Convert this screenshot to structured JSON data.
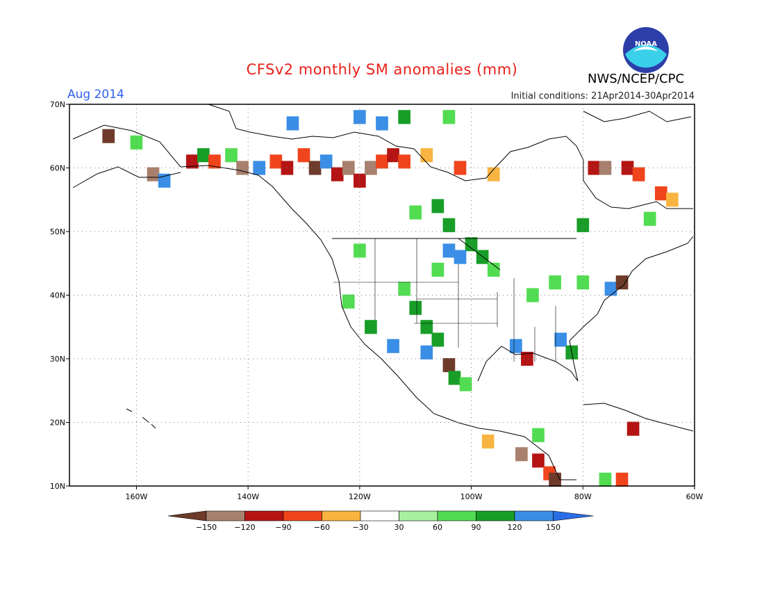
{
  "header": {
    "title": "CFSv2 monthly SM anomalies (mm)",
    "valid_month": "Aug 2014",
    "initial_conditions": "Initial conditions: 21Apr2014-30Apr2014",
    "organization": "NWS/NCEP/CPC",
    "logo_text": "NOAA"
  },
  "colors": {
    "title": "#e8201a",
    "valid_month": "#2f5ef0",
    "frame": "#000000",
    "grid": "#7a7a7a"
  },
  "map": {
    "lon_range": [
      -172,
      -60
    ],
    "lat_range": [
      10,
      70
    ],
    "lat_ticks": [
      {
        "value": 70,
        "label": "70N"
      },
      {
        "value": 60,
        "label": "60N"
      },
      {
        "value": 50,
        "label": "50N"
      },
      {
        "value": 40,
        "label": "40N"
      },
      {
        "value": 30,
        "label": "30N"
      },
      {
        "value": 20,
        "label": "20N"
      },
      {
        "value": 10,
        "label": "10N"
      }
    ],
    "lon_ticks": [
      {
        "value": -160,
        "label": "160W"
      },
      {
        "value": -140,
        "label": "140W"
      },
      {
        "value": -120,
        "label": "120W"
      },
      {
        "value": -100,
        "label": "100W"
      },
      {
        "value": -80,
        "label": "80W"
      },
      {
        "value": -60,
        "label": "60W"
      }
    ],
    "grid_lines": "dotted"
  },
  "colorbar": {
    "labels": [
      "−150",
      "−120",
      "−90",
      "−60",
      "−30",
      "30",
      "60",
      "90",
      "120",
      "150"
    ],
    "colors": [
      "#6e3b2a",
      "#a8806e",
      "#b41414",
      "#f0451c",
      "#f8b440",
      "#ffffff",
      "#a8f0a0",
      "#52dc52",
      "#189e28",
      "#3a8ee6",
      "#2a6ee6"
    ]
  },
  "anomaly_cells": [
    {
      "lon": -165,
      "lat": 65,
      "v": -150
    },
    {
      "lon": -160,
      "lat": 64,
      "v": 60
    },
    {
      "lon": -157,
      "lat": 59,
      "v": -120
    },
    {
      "lon": -155,
      "lat": 58,
      "v": 150
    },
    {
      "lon": -150,
      "lat": 61,
      "v": -90
    },
    {
      "lon": -148,
      "lat": 62,
      "v": 90
    },
    {
      "lon": -146,
      "lat": 61,
      "v": -60
    },
    {
      "lon": -143,
      "lat": 62,
      "v": 60
    },
    {
      "lon": -141,
      "lat": 60,
      "v": -120
    },
    {
      "lon": -138,
      "lat": 60,
      "v": 150
    },
    {
      "lon": -135,
      "lat": 61,
      "v": -60
    },
    {
      "lon": -133,
      "lat": 60,
      "v": -90
    },
    {
      "lon": -130,
      "lat": 62,
      "v": -60
    },
    {
      "lon": -128,
      "lat": 60,
      "v": -150
    },
    {
      "lon": -126,
      "lat": 61,
      "v": 150
    },
    {
      "lon": -124,
      "lat": 59,
      "v": -90
    },
    {
      "lon": -122,
      "lat": 60,
      "v": -120
    },
    {
      "lon": -120,
      "lat": 58,
      "v": -90
    },
    {
      "lon": -118,
      "lat": 60,
      "v": -120
    },
    {
      "lon": -116,
      "lat": 61,
      "v": -60
    },
    {
      "lon": -114,
      "lat": 62,
      "v": -90
    },
    {
      "lon": -112,
      "lat": 61,
      "v": -60
    },
    {
      "lon": -108,
      "lat": 62,
      "v": -30
    },
    {
      "lon": -102,
      "lat": 60,
      "v": -60
    },
    {
      "lon": -96,
      "lat": 59,
      "v": -30
    },
    {
      "lon": -132,
      "lat": 67,
      "v": 150
    },
    {
      "lon": -120,
      "lat": 68,
      "v": 150
    },
    {
      "lon": -116,
      "lat": 67,
      "v": 150
    },
    {
      "lon": -112,
      "lat": 68,
      "v": 90
    },
    {
      "lon": -104,
      "lat": 68,
      "v": 60
    },
    {
      "lon": -106,
      "lat": 54,
      "v": 90
    },
    {
      "lon": -110,
      "lat": 53,
      "v": 60
    },
    {
      "lon": -104,
      "lat": 51,
      "v": 90
    },
    {
      "lon": -100,
      "lat": 48,
      "v": 90
    },
    {
      "lon": -104,
      "lat": 47,
      "v": 150
    },
    {
      "lon": -102,
      "lat": 46,
      "v": 150
    },
    {
      "lon": -98,
      "lat": 46,
      "v": 90
    },
    {
      "lon": -96,
      "lat": 44,
      "v": 60
    },
    {
      "lon": -106,
      "lat": 44,
      "v": 60
    },
    {
      "lon": -112,
      "lat": 41,
      "v": 60
    },
    {
      "lon": -110,
      "lat": 38,
      "v": 90
    },
    {
      "lon": -108,
      "lat": 35,
      "v": 90
    },
    {
      "lon": -106,
      "lat": 33,
      "v": 90
    },
    {
      "lon": -108,
      "lat": 31,
      "v": 150
    },
    {
      "lon": -104,
      "lat": 29,
      "v": -150
    },
    {
      "lon": -103,
      "lat": 27,
      "v": 90
    },
    {
      "lon": -101,
      "lat": 26,
      "v": 60
    },
    {
      "lon": -92,
      "lat": 32,
      "v": 150
    },
    {
      "lon": -90,
      "lat": 30,
      "v": -90
    },
    {
      "lon": -84,
      "lat": 33,
      "v": 150
    },
    {
      "lon": -82,
      "lat": 31,
      "v": 90
    },
    {
      "lon": -89,
      "lat": 40,
      "v": 60
    },
    {
      "lon": -85,
      "lat": 42,
      "v": 60
    },
    {
      "lon": -80,
      "lat": 42,
      "v": 60
    },
    {
      "lon": -75,
      "lat": 41,
      "v": 150
    },
    {
      "lon": -73,
      "lat": 42,
      "v": -150
    },
    {
      "lon": -78,
      "lat": 60,
      "v": -90
    },
    {
      "lon": -76,
      "lat": 60,
      "v": -120
    },
    {
      "lon": -72,
      "lat": 60,
      "v": -90
    },
    {
      "lon": -70,
      "lat": 59,
      "v": -60
    },
    {
      "lon": -66,
      "lat": 56,
      "v": -60
    },
    {
      "lon": -64,
      "lat": 55,
      "v": -30
    },
    {
      "lon": -80,
      "lat": 51,
      "v": 90
    },
    {
      "lon": -68,
      "lat": 52,
      "v": 60
    },
    {
      "lon": -91,
      "lat": 15,
      "v": -120
    },
    {
      "lon": -88,
      "lat": 14,
      "v": -90
    },
    {
      "lon": -86,
      "lat": 12,
      "v": -60
    },
    {
      "lon": -85,
      "lat": 11,
      "v": -150
    },
    {
      "lon": -97,
      "lat": 17,
      "v": -30
    },
    {
      "lon": -71,
      "lat": 19,
      "v": -90
    },
    {
      "lon": -73,
      "lat": 11,
      "v": -60
    },
    {
      "lon": -76,
      "lat": 11,
      "v": 60
    },
    {
      "lon": -88,
      "lat": 18,
      "v": 60
    },
    {
      "lon": -120,
      "lat": 47,
      "v": 60
    },
    {
      "lon": -122,
      "lat": 39,
      "v": 60
    },
    {
      "lon": -118,
      "lat": 35,
      "v": 90
    },
    {
      "lon": -114,
      "lat": 32,
      "v": 150
    }
  ]
}
